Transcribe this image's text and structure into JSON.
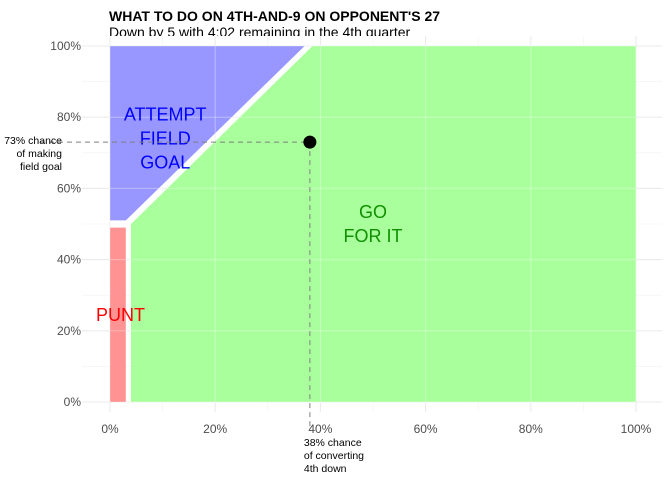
{
  "chart_data": {
    "type": "area",
    "title": "WHAT TO DO ON 4TH-AND-9 ON OPPONENT'S 27",
    "subtitle": "Down by 5 with 4:02 remaining in the 4th quarter",
    "xlabel": "",
    "ylabel": "",
    "xlim": [
      0,
      1
    ],
    "ylim": [
      0,
      1
    ],
    "x_ticks": [
      0,
      0.2,
      0.4,
      0.6,
      0.8,
      1.0
    ],
    "x_tick_labels": [
      "0%",
      "20%",
      "40%",
      "60%",
      "80%",
      "100%"
    ],
    "y_ticks": [
      0,
      0.2,
      0.4,
      0.6,
      0.8,
      1.0
    ],
    "y_tick_labels": [
      "0%",
      "20%",
      "40%",
      "60%",
      "80%",
      "100%"
    ],
    "grid": true,
    "regions": [
      {
        "name": "PUNT",
        "label_lines": [
          "PUNT"
        ],
        "color": "#ff8c8c",
        "text_color": "#ff0000",
        "polygon": [
          [
            0,
            0
          ],
          [
            0.03,
            0
          ],
          [
            0.03,
            0.49
          ],
          [
            0,
            0.49
          ]
        ],
        "label_pos": [
          0.02,
          0.245
        ]
      },
      {
        "name": "ATTEMPT FIELD GOAL",
        "label_lines": [
          "ATTEMPT",
          "FIELD",
          "GOAL"
        ],
        "color": "#9191ff",
        "text_color": "#0000ff",
        "polygon": [
          [
            0,
            0.51
          ],
          [
            0.03,
            0.51
          ],
          [
            0.37,
            1.0
          ],
          [
            0,
            1.0
          ]
        ],
        "label_pos": [
          0.105,
          0.74
        ]
      },
      {
        "name": "GO FOR IT",
        "label_lines": [
          "GO",
          "FOR IT"
        ],
        "color": "#a4ff97",
        "text_color": "#109000",
        "polygon": [
          [
            0.04,
            0
          ],
          [
            1.0,
            0
          ],
          [
            1.0,
            1.0
          ],
          [
            0.385,
            1.0
          ],
          [
            0.04,
            0.5
          ]
        ],
        "label_pos": [
          0.5,
          0.5
        ]
      }
    ],
    "point": {
      "x": 0.38,
      "y": 0.73,
      "x_annotation": [
        "38% chance",
        "of converting",
        "4th down"
      ],
      "y_annotation": [
        "73% chance",
        "of making",
        "field goal"
      ]
    }
  }
}
